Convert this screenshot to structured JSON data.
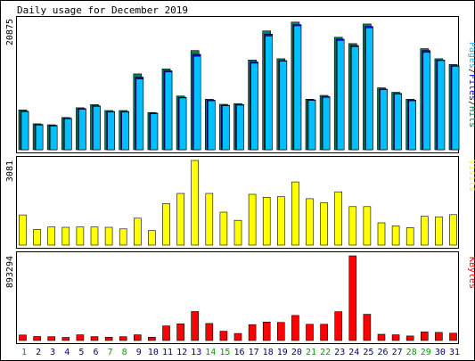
{
  "title": "Daily usage for December 2019",
  "legend": {
    "hits_pages": "Pages",
    "hits_files": "Files",
    "hits_hits": "Hits",
    "visits": "Visits",
    "kbytes": "KBytes",
    "sep": "/"
  },
  "axis": {
    "hits_max_label": "20875",
    "visits_max_label": "3081",
    "kbytes_max_label": "893294"
  },
  "colors": {
    "hits": "#00805c",
    "files": "#0000ff",
    "pages": "#00c0ff",
    "visits": "#ffff00",
    "kbytes": "#ff0000",
    "weekend_label": "#00a000",
    "weekday_label": "#000080"
  },
  "chart_data": [
    {
      "type": "bar",
      "panel": "hits",
      "categories": [
        "1",
        "2",
        "3",
        "4",
        "5",
        "6",
        "7",
        "8",
        "9",
        "10",
        "11",
        "12",
        "13",
        "14",
        "15",
        "16",
        "17",
        "18",
        "19",
        "20",
        "21",
        "22",
        "23",
        "24",
        "25",
        "26",
        "27",
        "28",
        "29",
        "30",
        "31"
      ],
      "weekend_days": [
        "1",
        "7",
        "8",
        "14",
        "15",
        "21",
        "22",
        "28",
        "29"
      ],
      "ylim": [
        0,
        20875
      ],
      "series": [
        {
          "name": "Hits",
          "values": [
            6300,
            4100,
            3950,
            5100,
            6650,
            7150,
            6200,
            6200,
            12000,
            5900,
            12800,
            8500,
            15700,
            8000,
            7200,
            7300,
            14200,
            18800,
            14400,
            20200,
            8000,
            8600,
            17800,
            16800,
            19900,
            9800,
            9100,
            8000,
            16000,
            14400,
            13500
          ]
        },
        {
          "name": "Files",
          "values": [
            6100,
            4000,
            3850,
            5000,
            6500,
            6950,
            6050,
            6050,
            11500,
            5800,
            12500,
            8300,
            15100,
            7850,
            7050,
            7150,
            13900,
            18300,
            14100,
            19800,
            7900,
            8400,
            17500,
            16500,
            19500,
            9600,
            8900,
            7850,
            15700,
            14200,
            13300
          ]
        },
        {
          "name": "Pages",
          "values": [
            6000,
            3900,
            3750,
            4900,
            6400,
            6850,
            5950,
            5950,
            11200,
            5700,
            12300,
            8200,
            14800,
            7750,
            6950,
            7050,
            13700,
            18000,
            14000,
            19600,
            7800,
            8300,
            17300,
            16300,
            19300,
            9500,
            8800,
            7750,
            15400,
            14100,
            13200
          ]
        }
      ]
    },
    {
      "type": "bar",
      "panel": "visits",
      "categories": [
        "1",
        "2",
        "3",
        "4",
        "5",
        "6",
        "7",
        "8",
        "9",
        "10",
        "11",
        "12",
        "13",
        "14",
        "15",
        "16",
        "17",
        "18",
        "19",
        "20",
        "21",
        "22",
        "23",
        "24",
        "25",
        "26",
        "27",
        "28",
        "29",
        "30",
        "31"
      ],
      "ylim": [
        0,
        3081
      ],
      "series": [
        {
          "name": "Visits",
          "values": [
            1100,
            570,
            660,
            650,
            660,
            660,
            650,
            590,
            980,
            530,
            1510,
            1880,
            3081,
            1880,
            1200,
            900,
            1850,
            1740,
            1760,
            2300,
            1690,
            1540,
            1940,
            1400,
            1400,
            810,
            700,
            640,
            1050,
            1030,
            1110
          ]
        }
      ]
    },
    {
      "type": "bar",
      "panel": "kbytes",
      "categories": [
        "1",
        "2",
        "3",
        "4",
        "5",
        "6",
        "7",
        "8",
        "9",
        "10",
        "11",
        "12",
        "13",
        "14",
        "15",
        "16",
        "17",
        "18",
        "19",
        "20",
        "21",
        "22",
        "23",
        "24",
        "25",
        "26",
        "27",
        "28",
        "29",
        "30",
        "31"
      ],
      "ylim": [
        0,
        893294
      ],
      "series": [
        {
          "name": "KBytes",
          "values": [
            58000,
            42000,
            40000,
            33000,
            60000,
            41000,
            35000,
            40000,
            60000,
            35000,
            154000,
            176000,
            306000,
            180000,
            98000,
            74000,
            167000,
            195000,
            191000,
            264000,
            171000,
            171000,
            304000,
            893294,
            276000,
            66000,
            60000,
            48000,
            90000,
            86000,
            77000
          ]
        }
      ]
    }
  ]
}
